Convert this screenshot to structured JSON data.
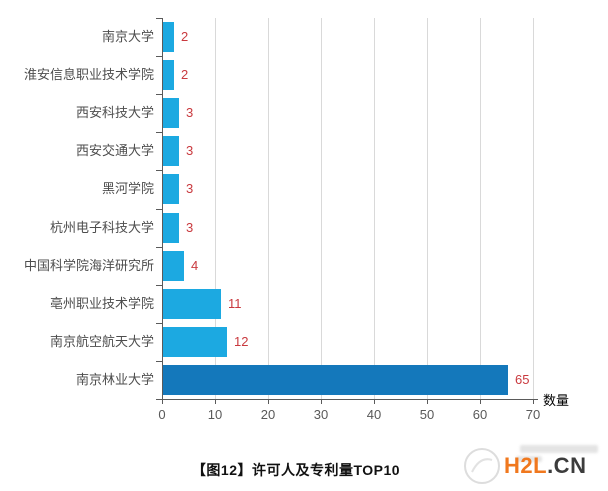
{
  "chart_data": {
    "type": "bar",
    "orientation": "horizontal",
    "title": "【图12】许可人及专利量TOP10",
    "xlabel": "数量",
    "xlim": [
      0,
      70
    ],
    "xticks": [
      0,
      10,
      20,
      30,
      40,
      50,
      60,
      70
    ],
    "grid": true,
    "legend_position": "none",
    "categories": [
      "南京大学",
      "淮安信息职业技术学院",
      "西安科技大学",
      "西安交通大学",
      "黑河学院",
      "杭州电子科技大学",
      "中国科学院海洋研究所",
      "亳州职业技术学院",
      "南京航空航天大学",
      "南京林业大学"
    ],
    "values": [
      2,
      2,
      3,
      3,
      3,
      3,
      4,
      11,
      12,
      65
    ],
    "bar_colors": [
      "#1ca9e1",
      "#1ca9e1",
      "#1ca9e1",
      "#1ca9e1",
      "#1ca9e1",
      "#1ca9e1",
      "#1ca9e1",
      "#1ca9e1",
      "#1ca9e1",
      "#1478bb"
    ],
    "value_label_color": "#c9393e",
    "category_label_color": "#4d4d4d",
    "tick_label_color": "#595959",
    "gridline_color": "#d9d9d9",
    "axis_color": "#5a5a5a"
  },
  "watermark": {
    "brand": "H2L",
    "suffix": ".CN",
    "brand_color": "#f0781e",
    "suffix_color": "#3c3c3c"
  }
}
